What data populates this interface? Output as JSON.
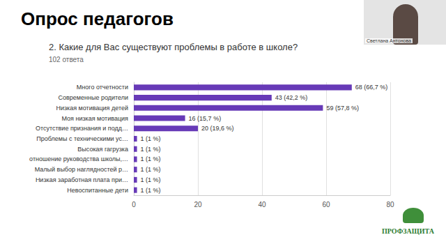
{
  "slide": {
    "heading": "Опрос педагогов",
    "speaker": "Светлана Антонова",
    "logo": "ПРОФЗАЩИТА"
  },
  "chart_data": {
    "type": "bar",
    "title": "2. Какие для Вас существуют проблемы в работе в школе?",
    "subtitle": "102 ответа",
    "orientation": "horizontal",
    "categories": [
      "Много отчетности",
      "Современные родители",
      "Низкая мотивация детей",
      "Моя низкая мотивация",
      "Отсутствие признания и подд…",
      "Проблемы с техническими ус…",
      "Высокая гагрузка",
      "отношение руководства школы,…",
      "Малый выбор наглядностей р…",
      "Низкая заработная плата при…",
      "Невоспитанные дети"
    ],
    "values": [
      68,
      43,
      59,
      16,
      20,
      1,
      1,
      1,
      1,
      1,
      1
    ],
    "value_labels": [
      "68 (66,7 %)",
      "43 (42,2 %)",
      "59 (57,8 %)",
      "16 (15,7 %)",
      "20 (19,6 %)",
      "1 (1 %)",
      "1 (1 %)",
      "1 (1 %)",
      "1 (1 %)",
      "1 (1 %)",
      "1 (1 %)"
    ],
    "color": "#673ab7",
    "xlim": [
      0,
      80
    ],
    "xticks": [
      0,
      20,
      40,
      60,
      80
    ],
    "grid": true,
    "data_labels": true
  }
}
